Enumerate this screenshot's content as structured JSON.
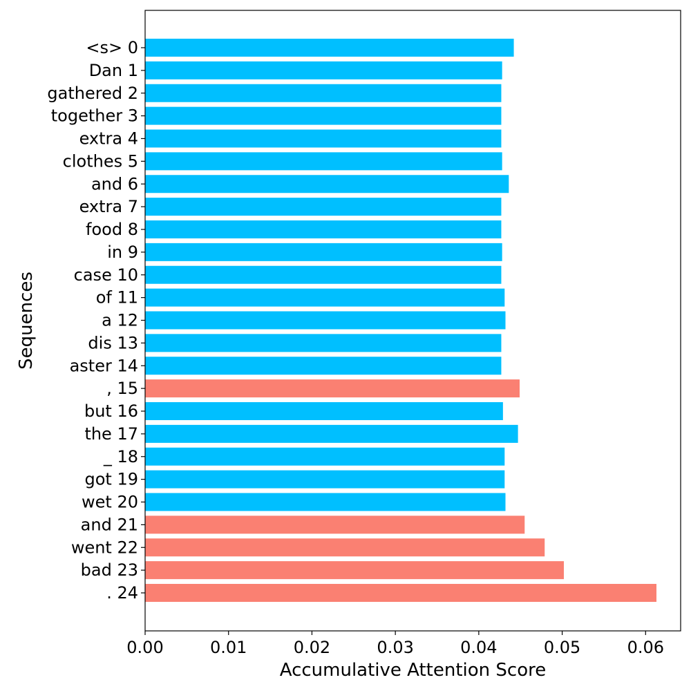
{
  "chart_data": {
    "type": "bar",
    "orientation": "horizontal",
    "xlabel": "Accumulative Attention Score",
    "ylabel": "Sequences",
    "xlim": [
      0.0,
      0.0642
    ],
    "xticks": [
      0.0,
      0.01,
      0.02,
      0.03,
      0.04,
      0.05,
      0.06
    ],
    "xtick_labels": [
      "0.00",
      "0.01",
      "0.02",
      "0.03",
      "0.04",
      "0.05",
      "0.06"
    ],
    "grid": false,
    "colors": {
      "normal": "#00bfff",
      "highlight": "#fa8072"
    },
    "categories": [
      "<s> 0",
      "Dan 1",
      "gathered 2",
      "together 3",
      "extra 4",
      "clothes 5",
      "and 6",
      "extra 7",
      "food 8",
      "in 9",
      "case 10",
      "of 11",
      "a 12",
      "dis 13",
      "aster 14",
      ", 15",
      "but 16",
      "the 17",
      "_ 18",
      "got 19",
      "wet 20",
      "and 21",
      "went 22",
      "bad 23",
      ". 24"
    ],
    "values": [
      0.0442,
      0.0428,
      0.0427,
      0.0427,
      0.0427,
      0.0428,
      0.0436,
      0.0427,
      0.0427,
      0.0428,
      0.0427,
      0.0431,
      0.0432,
      0.0427,
      0.0427,
      0.0449,
      0.0429,
      0.0447,
      0.0431,
      0.0431,
      0.0432,
      0.0455,
      0.0479,
      0.0502,
      0.0613
    ],
    "highlight": [
      false,
      false,
      false,
      false,
      false,
      false,
      false,
      false,
      false,
      false,
      false,
      false,
      false,
      false,
      false,
      true,
      false,
      false,
      false,
      false,
      false,
      true,
      true,
      true,
      true
    ]
  }
}
